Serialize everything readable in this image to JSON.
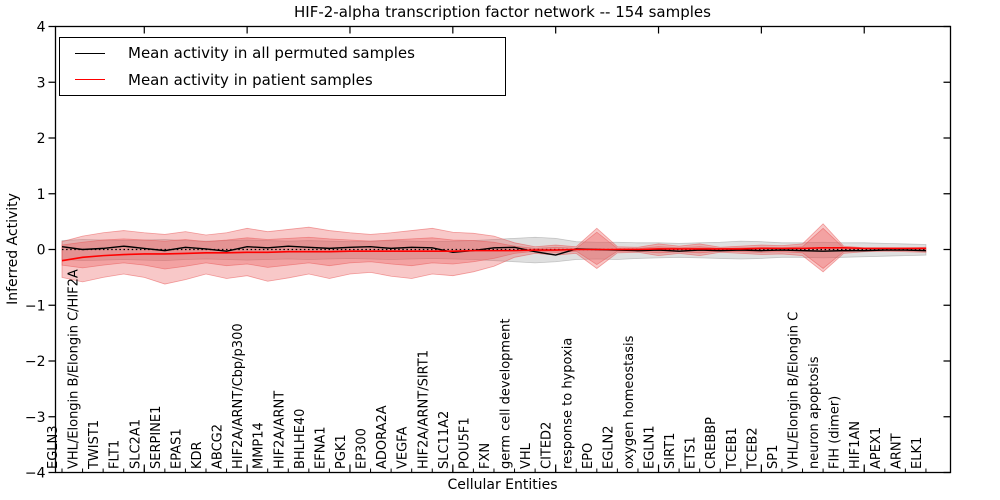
{
  "figure": {
    "title": "HIF-2-alpha transcription factor network -- 154 samples",
    "xlabel": "Cellular Entities",
    "ylabel": "Inferred Activity"
  },
  "legend": {
    "items": [
      {
        "label": "Mean activity in all permuted samples",
        "color": "#000000"
      },
      {
        "label": "Mean activity in patient samples",
        "color": "#ff0000"
      }
    ]
  },
  "chart_data": {
    "type": "line",
    "title": "HIF-2-alpha transcription factor network -- 154 samples",
    "xlabel": "Cellular Entities",
    "ylabel": "Inferred Activity",
    "ylim": [
      -4,
      4
    ],
    "yticks": [
      4,
      3,
      2,
      1,
      0,
      -1,
      -2,
      -3,
      -4
    ],
    "x_major_tick_indices": [
      4,
      9,
      14,
      19,
      24,
      29,
      34,
      39
    ],
    "grid": false,
    "legend_position": "upper left",
    "zero_line": {
      "y": 0,
      "style": "dotted",
      "color": "#000000"
    },
    "colors": {
      "permuted_line": "#000000",
      "patient_line": "#ff0000",
      "permuted_band": "#9a9a9a",
      "patient_band": "#e85353"
    },
    "categories": [
      "EGLN3",
      "VHL/Elongin B/Elongin C/HIF2A",
      "TWIST1",
      "FLT1",
      "SLC2A1",
      "SERPINE1",
      "EPAS1",
      "KDR",
      "ABCG2",
      "HIF2A/ARNT/Cbp/p300",
      "MMP14",
      "HIF2A/ARNT",
      "BHLHE40",
      "EFNA1",
      "PGK1",
      "EP300",
      "ADORA2A",
      "VEGFA",
      "HIF2A/ARNT/SIRT1",
      "SLC11A2",
      "POU5F1",
      "FXN",
      "germ cell development",
      "VHL",
      "CITED2",
      "response to hypoxia",
      "EPO",
      "EGLN2",
      "oxygen homeostasis",
      "EGLN1",
      "SIRT1",
      "ETS1",
      "CREBBP",
      "TCEB1",
      "TCEB2",
      "SP1",
      "VHL/Elongin B/Elongin C",
      "neuron apoptosis",
      "FIH (dimer)",
      "HIF1AN",
      "APEX1",
      "ARNT",
      "ELK1"
    ],
    "series": [
      {
        "name": "Mean activity in all permuted samples",
        "color": "#000000",
        "values": [
          0.05,
          0.0,
          0.02,
          0.06,
          0.02,
          -0.02,
          0.04,
          0.01,
          -0.03,
          0.05,
          0.03,
          0.06,
          0.04,
          0.02,
          0.04,
          0.05,
          0.02,
          0.04,
          0.03,
          -0.05,
          -0.02,
          0.03,
          0.04,
          -0.04,
          -0.1,
          0.01,
          0.0,
          -0.01,
          -0.02,
          -0.01,
          -0.03,
          -0.01,
          -0.02,
          -0.01,
          -0.02,
          -0.01,
          -0.02,
          -0.03,
          -0.02,
          -0.02,
          -0.01,
          -0.01,
          -0.02
        ]
      },
      {
        "name": "Mean activity in patient samples",
        "color": "#ff0000",
        "values": [
          -0.2,
          -0.14,
          -0.11,
          -0.09,
          -0.08,
          -0.08,
          -0.07,
          -0.06,
          -0.06,
          -0.05,
          -0.05,
          -0.04,
          -0.04,
          -0.04,
          -0.03,
          -0.03,
          -0.03,
          -0.03,
          -0.03,
          -0.03,
          -0.02,
          -0.02,
          -0.02,
          -0.01,
          -0.01,
          0.0,
          0.0,
          0.0,
          0.0,
          0.01,
          0.01,
          0.01,
          0.01,
          0.01,
          0.02,
          0.02,
          0.02,
          0.03,
          0.03,
          0.02,
          0.02,
          0.02,
          0.02
        ]
      }
    ],
    "bands": [
      {
        "name": "permuted-range",
        "color": "#9a9a9a",
        "opacity": 0.32,
        "top": [
          0.16,
          0.18,
          0.17,
          0.16,
          0.17,
          0.18,
          0.16,
          0.15,
          0.16,
          0.17,
          0.16,
          0.15,
          0.16,
          0.15,
          0.14,
          0.15,
          0.16,
          0.15,
          0.14,
          0.15,
          0.16,
          0.18,
          0.2,
          0.22,
          0.2,
          0.14,
          0.13,
          0.13,
          0.12,
          0.12,
          0.11,
          0.12,
          0.13,
          0.15,
          0.14,
          0.12,
          0.12,
          0.13,
          0.12,
          0.12,
          0.11,
          0.1,
          0.09
        ],
        "bottom": [
          -0.18,
          -0.2,
          -0.19,
          -0.18,
          -0.19,
          -0.2,
          -0.18,
          -0.17,
          -0.18,
          -0.19,
          -0.18,
          -0.17,
          -0.18,
          -0.17,
          -0.16,
          -0.17,
          -0.18,
          -0.17,
          -0.16,
          -0.17,
          -0.18,
          -0.2,
          -0.22,
          -0.24,
          -0.22,
          -0.18,
          -0.17,
          -0.18,
          -0.16,
          -0.15,
          -0.14,
          -0.15,
          -0.16,
          -0.17,
          -0.16,
          -0.14,
          -0.14,
          -0.15,
          -0.14,
          -0.13,
          -0.12,
          -0.11,
          -0.1
        ]
      },
      {
        "name": "patient-outer-range",
        "color": "#e85353",
        "opacity": 0.32,
        "top": [
          0.14,
          0.24,
          0.3,
          0.34,
          0.3,
          0.27,
          0.32,
          0.26,
          0.3,
          0.38,
          0.32,
          0.36,
          0.4,
          0.34,
          0.3,
          0.27,
          0.3,
          0.34,
          0.38,
          0.31,
          0.29,
          0.24,
          0.12,
          0.05,
          0.08,
          0.05,
          0.38,
          0.05,
          0.04,
          0.1,
          0.06,
          0.1,
          0.04,
          0.06,
          0.08,
          0.07,
          0.1,
          0.46,
          0.06,
          0.03,
          0.03,
          0.03,
          0.04
        ],
        "bottom": [
          -0.5,
          -0.58,
          -0.5,
          -0.44,
          -0.5,
          -0.62,
          -0.54,
          -0.44,
          -0.52,
          -0.47,
          -0.57,
          -0.51,
          -0.44,
          -0.52,
          -0.44,
          -0.41,
          -0.48,
          -0.52,
          -0.44,
          -0.47,
          -0.4,
          -0.3,
          -0.14,
          -0.07,
          -0.1,
          -0.07,
          -0.34,
          -0.06,
          -0.05,
          -0.11,
          -0.07,
          -0.11,
          -0.05,
          -0.07,
          -0.09,
          -0.08,
          -0.11,
          -0.4,
          -0.07,
          -0.04,
          -0.03,
          -0.04,
          -0.05
        ]
      },
      {
        "name": "patient-inner-range",
        "color": "#e85353",
        "opacity": 0.32,
        "top": [
          0.08,
          0.13,
          0.17,
          0.19,
          0.17,
          0.15,
          0.18,
          0.14,
          0.17,
          0.21,
          0.18,
          0.2,
          0.22,
          0.19,
          0.17,
          0.15,
          0.17,
          0.19,
          0.21,
          0.17,
          0.16,
          0.13,
          0.06,
          0.02,
          0.04,
          0.02,
          0.31,
          0.02,
          0.02,
          0.05,
          0.03,
          0.05,
          0.02,
          0.03,
          0.04,
          0.03,
          0.05,
          0.38,
          0.03,
          0.015,
          0.015,
          0.015,
          0.02
        ],
        "bottom": [
          -0.28,
          -0.33,
          -0.28,
          -0.24,
          -0.28,
          -0.35,
          -0.3,
          -0.24,
          -0.29,
          -0.26,
          -0.32,
          -0.28,
          -0.24,
          -0.29,
          -0.24,
          -0.22,
          -0.26,
          -0.29,
          -0.24,
          -0.26,
          -0.22,
          -0.16,
          -0.07,
          -0.03,
          -0.05,
          -0.03,
          -0.27,
          -0.03,
          -0.03,
          -0.06,
          -0.04,
          -0.06,
          -0.03,
          -0.04,
          -0.05,
          -0.04,
          -0.06,
          -0.34,
          -0.04,
          -0.02,
          -0.02,
          -0.02,
          -0.03
        ]
      }
    ]
  }
}
